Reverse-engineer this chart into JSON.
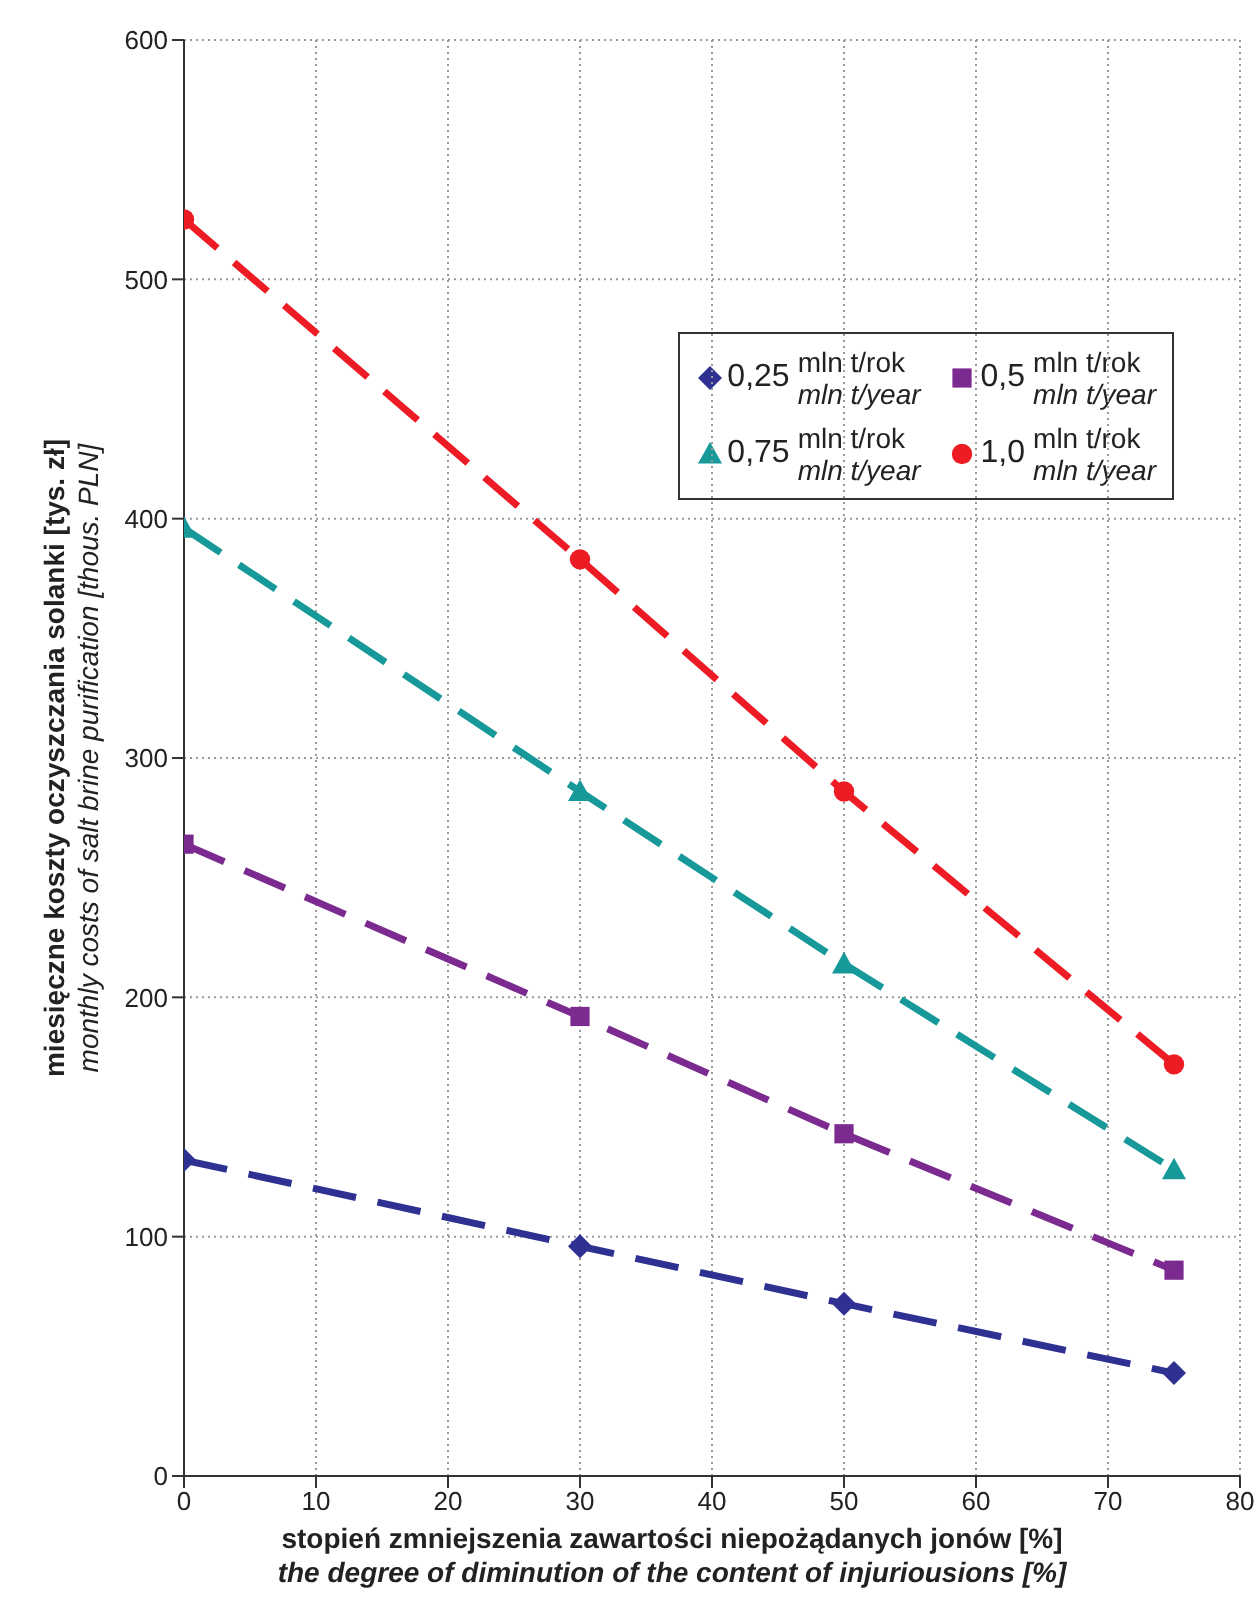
{
  "chart_data": {
    "type": "line",
    "xlabel": "stopień zmniejszenia zawartości niepożądanych jonów [%]\nthe degree of diminution of the content of injuriousions [%]",
    "ylabel": "miesięczne koszty oczyszczania solanki [tys. zł]\nmonthly costs of salt brine purification [thous. PLN]",
    "x": [
      0,
      30,
      50,
      75
    ],
    "series": [
      {
        "name": "0,25 mln t/rok\nmln t/year",
        "color": "#2e3192",
        "marker": "diamond",
        "values": [
          132,
          96,
          72,
          43
        ]
      },
      {
        "name": "0,5 mln t/rok\nmln t/year",
        "color": "#7b2a8f",
        "marker": "square",
        "values": [
          264,
          192,
          143,
          86
        ]
      },
      {
        "name": "0,75 mln t/rok\nmln t/year",
        "color": "#17999a",
        "marker": "triangle",
        "values": [
          396,
          286,
          214,
          128
        ]
      },
      {
        "name": "1,0 mln t/rok\nmln t/year",
        "color": "#ed1c24",
        "marker": "circle",
        "values": [
          525,
          383,
          286,
          172
        ]
      }
    ],
    "xlim": [
      0,
      80
    ],
    "xticks": [
      0,
      10,
      20,
      30,
      40,
      50,
      60,
      70,
      80
    ],
    "ylim": [
      0,
      600
    ],
    "yticks": [
      0,
      100,
      200,
      300,
      400,
      500,
      600
    ],
    "grid": true,
    "legend": "top right",
    "line_style": "dashed"
  }
}
